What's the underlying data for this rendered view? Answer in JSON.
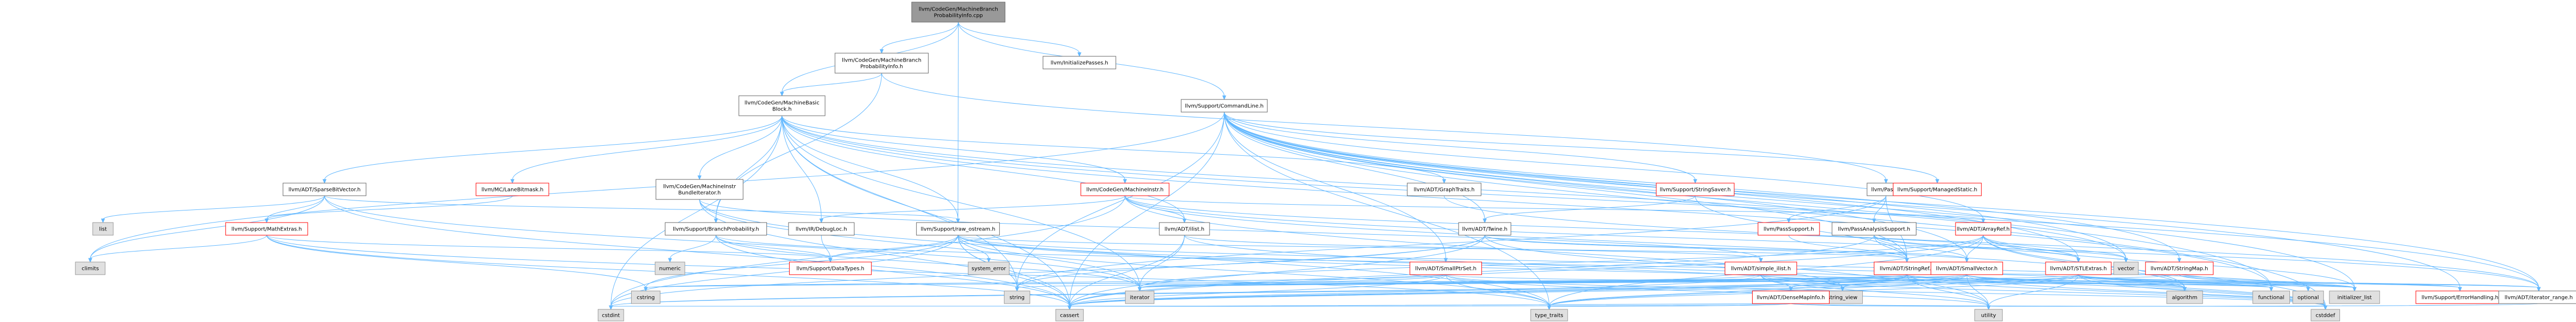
{
  "graph": {
    "nodes": [
      {
        "id": "root",
        "lines": [
          "llvm/CodeGen/MachineBranch",
          "ProbabilityInfo.cpp"
        ],
        "style": "root"
      },
      {
        "id": "mbpi",
        "lines": [
          "llvm/CodeGen/MachineBranch",
          "ProbabilityInfo.h"
        ],
        "style": "int"
      },
      {
        "id": "initpass",
        "lines": [
          "llvm/InitializePasses.h"
        ],
        "style": "int"
      },
      {
        "id": "mbb",
        "lines": [
          "llvm/CodeGen/MachineBasic",
          "Block.h"
        ],
        "style": "int"
      },
      {
        "id": "cmdline",
        "lines": [
          "llvm/Support/CommandLine.h"
        ],
        "style": "int"
      },
      {
        "id": "sbv",
        "lines": [
          "llvm/ADT/SparseBitVector.h"
        ],
        "style": "int"
      },
      {
        "id": "lanebm",
        "lines": [
          "llvm/MC/LaneBitmask.h"
        ],
        "style": "red"
      },
      {
        "id": "mibi",
        "lines": [
          "llvm/CodeGen/MachineInstr",
          "BundleIterator.h"
        ],
        "style": "int"
      },
      {
        "id": "mi",
        "lines": [
          "llvm/CodeGen/MachineInstr.h"
        ],
        "style": "red"
      },
      {
        "id": "strsaver",
        "lines": [
          "llvm/Support/StringSaver.h"
        ],
        "style": "red"
      },
      {
        "id": "pass",
        "lines": [
          "llvm/Pass.h"
        ],
        "style": "int"
      },
      {
        "id": "graphtraits",
        "lines": [
          "llvm/ADT/GraphTraits.h"
        ],
        "style": "int"
      },
      {
        "id": "managedstatic",
        "lines": [
          "llvm/Support/ManagedStatic.h"
        ],
        "style": "red"
      },
      {
        "id": "list",
        "lines": [
          "list"
        ],
        "style": "sys"
      },
      {
        "id": "mathextras",
        "lines": [
          "llvm/Support/MathExtras.h"
        ],
        "style": "red"
      },
      {
        "id": "branchprob",
        "lines": [
          "llvm/Support/BranchProbability.h"
        ],
        "style": "int"
      },
      {
        "id": "debugloc",
        "lines": [
          "llvm/IR/DebugLoc.h"
        ],
        "style": "int"
      },
      {
        "id": "rawostream",
        "lines": [
          "llvm/Support/raw_ostream.h"
        ],
        "style": "int"
      },
      {
        "id": "ilist",
        "lines": [
          "llvm/ADT/ilist.h"
        ],
        "style": "int"
      },
      {
        "id": "twine",
        "lines": [
          "llvm/ADT/Twine.h"
        ],
        "style": "int"
      },
      {
        "id": "passsupport",
        "lines": [
          "llvm/PassSupport.h"
        ],
        "style": "red"
      },
      {
        "id": "pas",
        "lines": [
          "llvm/PassAnalysisSupport.h"
        ],
        "style": "int"
      },
      {
        "id": "arrayref",
        "lines": [
          "llvm/ADT/ArrayRef.h"
        ],
        "style": "red"
      },
      {
        "id": "climits",
        "lines": [
          "climits"
        ],
        "style": "sys"
      },
      {
        "id": "numeric",
        "lines": [
          "numeric"
        ],
        "style": "sys"
      },
      {
        "id": "datatypes",
        "lines": [
          "llvm/Support/DataTypes.h"
        ],
        "style": "red"
      },
      {
        "id": "systemerror",
        "lines": [
          "system_error"
        ],
        "style": "sys"
      },
      {
        "id": "smallptrset",
        "lines": [
          "llvm/ADT/SmallPtrSet.h"
        ],
        "style": "red"
      },
      {
        "id": "simplelist",
        "lines": [
          "llvm/ADT/simple_ilist.h"
        ],
        "style": "red"
      },
      {
        "id": "stringref",
        "lines": [
          "llvm/ADT/StringRef.h"
        ],
        "style": "red"
      },
      {
        "id": "smallvector",
        "lines": [
          "llvm/ADT/SmallVector.h"
        ],
        "style": "red"
      },
      {
        "id": "stlextras",
        "lines": [
          "llvm/ADT/STLExtras.h"
        ],
        "style": "red"
      },
      {
        "id": "stringmap",
        "lines": [
          "llvm/ADT/StringMap.h"
        ],
        "style": "red"
      },
      {
        "id": "vector",
        "lines": [
          "vector"
        ],
        "style": "sys"
      },
      {
        "id": "cstring",
        "lines": [
          "cstring"
        ],
        "style": "sys"
      },
      {
        "id": "string",
        "lines": [
          "string"
        ],
        "style": "sys"
      },
      {
        "id": "iterator",
        "lines": [
          "iterator"
        ],
        "style": "sys"
      },
      {
        "id": "stringview",
        "lines": [
          "string_view"
        ],
        "style": "sys"
      },
      {
        "id": "algorithm",
        "lines": [
          "algorithm"
        ],
        "style": "sys"
      },
      {
        "id": "functional",
        "lines": [
          "functional"
        ],
        "style": "sys"
      },
      {
        "id": "optional",
        "lines": [
          "optional"
        ],
        "style": "sys"
      },
      {
        "id": "initlist",
        "lines": [
          "initializer_list"
        ],
        "style": "sys"
      },
      {
        "id": "densemapinfo",
        "lines": [
          "llvm/ADT/DenseMapInfo.h"
        ],
        "style": "red"
      },
      {
        "id": "errorhandling",
        "lines": [
          "llvm/Support/ErrorHandling.h"
        ],
        "style": "red"
      },
      {
        "id": "iterrange",
        "lines": [
          "llvm/ADT/iterator_range.h"
        ],
        "style": "int"
      },
      {
        "id": "cstdint",
        "lines": [
          "cstdint"
        ],
        "style": "sys"
      },
      {
        "id": "cassert",
        "lines": [
          "cassert"
        ],
        "style": "sys"
      },
      {
        "id": "typetraits",
        "lines": [
          "type_traits"
        ],
        "style": "sys"
      },
      {
        "id": "utility",
        "lines": [
          "utility"
        ],
        "style": "sys"
      },
      {
        "id": "cstddef",
        "lines": [
          "cstddef"
        ],
        "style": "sys"
      }
    ],
    "edges": [
      [
        "root",
        "mbpi"
      ],
      [
        "root",
        "initpass"
      ],
      [
        "root",
        "mbb"
      ],
      [
        "root",
        "cmdline"
      ],
      [
        "root",
        "rawostream"
      ],
      [
        "mbpi",
        "mbb"
      ],
      [
        "mbpi",
        "branchprob"
      ],
      [
        "mbpi",
        "pass"
      ],
      [
        "mbb",
        "sbv"
      ],
      [
        "mbb",
        "lanebm"
      ],
      [
        "mbb",
        "mibi"
      ],
      [
        "mbb",
        "mi"
      ],
      [
        "mbb",
        "ilist"
      ],
      [
        "mbb",
        "graphtraits"
      ],
      [
        "mbb",
        "branchprob"
      ],
      [
        "mbb",
        "debugloc"
      ],
      [
        "mbb",
        "rawostream"
      ],
      [
        "mbb",
        "iterrange"
      ],
      [
        "mbb",
        "cassert"
      ],
      [
        "mbb",
        "iterator"
      ],
      [
        "mbb",
        "string"
      ],
      [
        "mbb",
        "cstdint"
      ],
      [
        "mbb",
        "functional"
      ],
      [
        "mbb",
        "vector"
      ],
      [
        "cmdline",
        "stringsaver_dummy"
      ],
      [
        "cmdline",
        "strsaver"
      ],
      [
        "cmdline",
        "pass_dummy"
      ],
      [
        "cmdline",
        "managedstatic"
      ],
      [
        "cmdline",
        "arrayref"
      ],
      [
        "cmdline",
        "smallptrset"
      ],
      [
        "cmdline",
        "smallvector"
      ],
      [
        "cmdline",
        "stlextras"
      ],
      [
        "cmdline",
        "stringmap"
      ],
      [
        "cmdline",
        "stringref"
      ],
      [
        "cmdline",
        "twine"
      ],
      [
        "cmdline",
        "errorhandling"
      ],
      [
        "cmdline",
        "iterrange"
      ],
      [
        "cmdline",
        "cassert"
      ],
      [
        "cmdline",
        "climits"
      ],
      [
        "cmdline",
        "cstddef"
      ],
      [
        "cmdline",
        "functional"
      ],
      [
        "cmdline",
        "initlist"
      ],
      [
        "cmdline",
        "string"
      ],
      [
        "cmdline",
        "typetraits"
      ],
      [
        "cmdline",
        "vector"
      ],
      [
        "sbv",
        "list"
      ],
      [
        "sbv",
        "mathextras"
      ],
      [
        "sbv",
        "climits"
      ],
      [
        "sbv",
        "cassert"
      ],
      [
        "sbv",
        "iterator"
      ],
      [
        "sbv",
        "rawostream"
      ],
      [
        "lanebm",
        "mathextras"
      ],
      [
        "mibi",
        "simplelist"
      ],
      [
        "mibi",
        "cassert"
      ],
      [
        "mibi",
        "iterator"
      ],
      [
        "mibi",
        "typetraits"
      ],
      [
        "mi",
        "ilist"
      ],
      [
        "mi",
        "arrayref"
      ],
      [
        "mi",
        "debugloc"
      ],
      [
        "mi",
        "iterrange"
      ],
      [
        "mi",
        "cstdint"
      ],
      [
        "mi",
        "utility"
      ],
      [
        "mi",
        "algorithm"
      ],
      [
        "mi",
        "stlextras"
      ],
      [
        "strsaver",
        "stringref"
      ],
      [
        "strsaver",
        "twine"
      ],
      [
        "pass",
        "passsupport"
      ],
      [
        "pass",
        "pas"
      ],
      [
        "pass",
        "stringref"
      ],
      [
        "pass",
        "string"
      ],
      [
        "graphtraits",
        "iterrange"
      ],
      [
        "mathextras",
        "climits"
      ],
      [
        "mathextras",
        "cassert"
      ],
      [
        "mathextras",
        "cstring"
      ],
      [
        "mathextras",
        "typetraits"
      ],
      [
        "mathextras",
        "datatypes"
      ],
      [
        "branchprob",
        "datatypes"
      ],
      [
        "branchprob",
        "algorithm"
      ],
      [
        "branchprob",
        "cassert"
      ],
      [
        "branchprob",
        "iterator"
      ],
      [
        "branchprob",
        "numeric"
      ],
      [
        "debugloc",
        "datatypes"
      ],
      [
        "rawostream",
        "datatypes"
      ],
      [
        "rawostream",
        "stringref"
      ],
      [
        "rawostream",
        "cassert"
      ],
      [
        "rawostream",
        "cstddef"
      ],
      [
        "rawostream",
        "cstdint"
      ],
      [
        "rawostream",
        "cstring"
      ],
      [
        "rawostream",
        "optional"
      ],
      [
        "rawostream",
        "string"
      ],
      [
        "rawostream",
        "stringview"
      ],
      [
        "rawostream",
        "systemerror"
      ],
      [
        "rawostream",
        "typetraits"
      ],
      [
        "ilist",
        "simplelist"
      ],
      [
        "ilist",
        "cassert"
      ],
      [
        "ilist",
        "cstddef"
      ],
      [
        "ilist",
        "iterator"
      ],
      [
        "twine",
        "smallvector"
      ],
      [
        "twine",
        "stringref"
      ],
      [
        "twine",
        "cassert"
      ],
      [
        "twine",
        "cstdint"
      ],
      [
        "twine",
        "string"
      ],
      [
        "twine",
        "stringview"
      ],
      [
        "passsupport",
        "stringref"
      ],
      [
        "pas",
        "smallvector"
      ],
      [
        "pas",
        "stringref"
      ],
      [
        "pas",
        "cassert"
      ],
      [
        "pas",
        "vector"
      ],
      [
        "pas",
        "stlextras"
      ],
      [
        "arrayref",
        "smallvector"
      ],
      [
        "arrayref",
        "stlextras"
      ],
      [
        "arrayref",
        "cassert"
      ],
      [
        "arrayref",
        "cstddef"
      ],
      [
        "arrayref",
        "initlist"
      ],
      [
        "arrayref",
        "iterator"
      ],
      [
        "arrayref",
        "typetraits"
      ],
      [
        "arrayref",
        "vector"
      ],
      [
        "arrayref",
        "algorithm"
      ],
      [
        "smallptrset",
        "cassert"
      ],
      [
        "smallptrset",
        "cstddef"
      ],
      [
        "smallptrset",
        "cstring"
      ],
      [
        "smallptrset",
        "initlist"
      ],
      [
        "smallptrset",
        "iterator"
      ],
      [
        "smallptrset",
        "utility"
      ],
      [
        "smallptrset",
        "typetraits"
      ],
      [
        "simplelist",
        "cassert"
      ],
      [
        "simplelist",
        "cstddef"
      ],
      [
        "simplelist",
        "functional"
      ],
      [
        "simplelist",
        "iterator"
      ],
      [
        "simplelist",
        "utility"
      ],
      [
        "simplelist",
        "densemapinfo"
      ],
      [
        "stringref",
        "densemapinfo"
      ],
      [
        "stringref",
        "iterrange"
      ],
      [
        "stringref",
        "algorithm"
      ],
      [
        "stringref",
        "cassert"
      ],
      [
        "stringref",
        "cstddef"
      ],
      [
        "stringref",
        "cstring"
      ],
      [
        "stringref",
        "iterator"
      ],
      [
        "stringref",
        "string"
      ],
      [
        "stringref",
        "stringview"
      ],
      [
        "stringref",
        "typetraits"
      ],
      [
        "stringref",
        "utility"
      ],
      [
        "stringref",
        "limits_dummy"
      ],
      [
        "smallvector",
        "algorithm"
      ],
      [
        "smallvector",
        "cassert"
      ],
      [
        "smallvector",
        "cstddef"
      ],
      [
        "smallvector",
        "cstdint"
      ],
      [
        "smallvector",
        "cstring"
      ],
      [
        "smallvector",
        "functional"
      ],
      [
        "smallvector",
        "initlist"
      ],
      [
        "smallvector",
        "iterator"
      ],
      [
        "smallvector",
        "utility"
      ],
      [
        "smallvector",
        "typetraits"
      ],
      [
        "stlextras",
        "iterrange"
      ],
      [
        "stlextras",
        "errorhandling"
      ],
      [
        "stlextras",
        "algorithm"
      ],
      [
        "stlextras",
        "cassert"
      ],
      [
        "stlextras",
        "cstddef"
      ],
      [
        "stlextras",
        "cstdint"
      ],
      [
        "stlextras",
        "functional"
      ],
      [
        "stlextras",
        "initlist"
      ],
      [
        "stlextras",
        "iterator"
      ],
      [
        "stlextras",
        "optional"
      ],
      [
        "stlextras",
        "typetraits"
      ],
      [
        "stlextras",
        "utility"
      ],
      [
        "stringmap",
        "errorhandling"
      ],
      [
        "stringmap",
        "initlist"
      ],
      [
        "stringmap",
        "iterator"
      ],
      [
        "stringmap",
        "stringref"
      ],
      [
        "densemapinfo",
        "cassert"
      ],
      [
        "densemapinfo",
        "cstddef"
      ],
      [
        "densemapinfo",
        "cstdint"
      ],
      [
        "densemapinfo",
        "utility"
      ],
      [
        "densemapinfo",
        "typetraits"
      ],
      [
        "iterrange",
        "utility"
      ]
    ]
  }
}
